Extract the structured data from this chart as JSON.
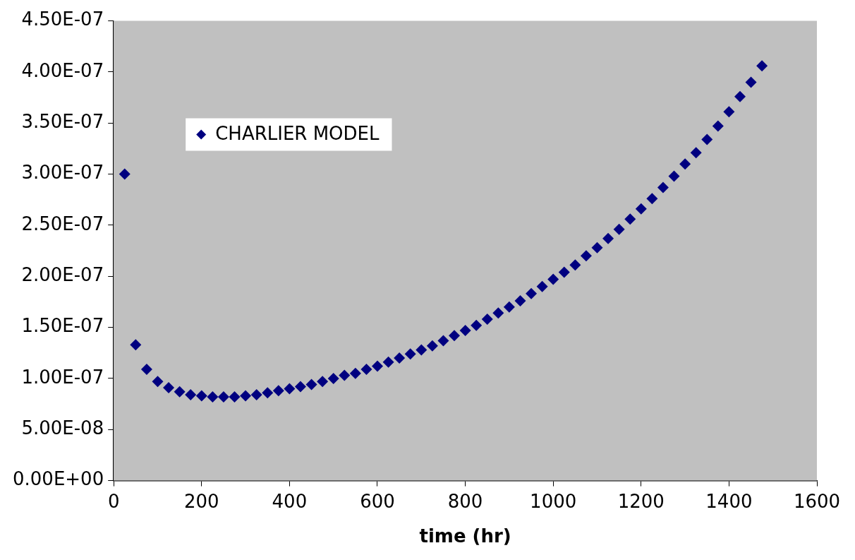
{
  "chart_data": {
    "type": "scatter",
    "xlabel": "time (hr)",
    "legend": "top left",
    "marker": "diamond",
    "grid": false,
    "xlim": [
      0,
      1600
    ],
    "xticks": [
      0,
      200,
      400,
      600,
      800,
      1000,
      1200,
      1400,
      1600
    ],
    "ylim": [
      0,
      4.5e-07
    ],
    "yticks": [
      {
        "value": 0,
        "label": "0.00E+00"
      },
      {
        "value": 5e-08,
        "label": "5.00E-08"
      },
      {
        "value": 1e-07,
        "label": "1.00E-07"
      },
      {
        "value": 1.5e-07,
        "label": "1.50E-07"
      },
      {
        "value": 2e-07,
        "label": "2.00E-07"
      },
      {
        "value": 2.5e-07,
        "label": "2.50E-07"
      },
      {
        "value": 3e-07,
        "label": "3.00E-07"
      },
      {
        "value": 3.5e-07,
        "label": "3.50E-07"
      },
      {
        "value": 4e-07,
        "label": "4.00E-07"
      },
      {
        "value": 4.5e-07,
        "label": "4.50E-07"
      }
    ],
    "series": [
      {
        "name": "CHARLIER MODEL",
        "color": "#000080",
        "x": [
          25,
          50,
          75,
          100,
          125,
          150,
          175,
          200,
          225,
          250,
          275,
          300,
          325,
          350,
          375,
          400,
          425,
          450,
          475,
          500,
          525,
          550,
          575,
          600,
          625,
          650,
          675,
          700,
          725,
          750,
          775,
          800,
          825,
          850,
          875,
          900,
          925,
          950,
          975,
          1000,
          1025,
          1050,
          1075,
          1100,
          1125,
          1150,
          1175,
          1200,
          1225,
          1250,
          1275,
          1300,
          1325,
          1350,
          1375,
          1400,
          1425,
          1450,
          1475
        ],
        "values": [
          3e-07,
          1.33e-07,
          1.09e-07,
          9.7e-08,
          9.1e-08,
          8.7e-08,
          8.4e-08,
          8.3e-08,
          8.2e-08,
          8.2e-08,
          8.2e-08,
          8.3e-08,
          8.4e-08,
          8.6e-08,
          8.8e-08,
          9e-08,
          9.2e-08,
          9.4e-08,
          9.7e-08,
          1e-07,
          1.03e-07,
          1.05e-07,
          1.09e-07,
          1.12e-07,
          1.16e-07,
          1.2e-07,
          1.24e-07,
          1.28e-07,
          1.32e-07,
          1.37e-07,
          1.42e-07,
          1.47e-07,
          1.52e-07,
          1.58e-07,
          1.64e-07,
          1.7e-07,
          1.76e-07,
          1.83e-07,
          1.9e-07,
          1.97e-07,
          2.04e-07,
          2.11e-07,
          2.2e-07,
          2.28e-07,
          2.37e-07,
          2.46e-07,
          2.56e-07,
          2.66e-07,
          2.76e-07,
          2.87e-07,
          2.98e-07,
          3.1e-07,
          3.21e-07,
          3.34e-07,
          3.47e-07,
          3.61e-07,
          3.76e-07,
          3.9e-07,
          4.06e-07
        ]
      }
    ]
  }
}
